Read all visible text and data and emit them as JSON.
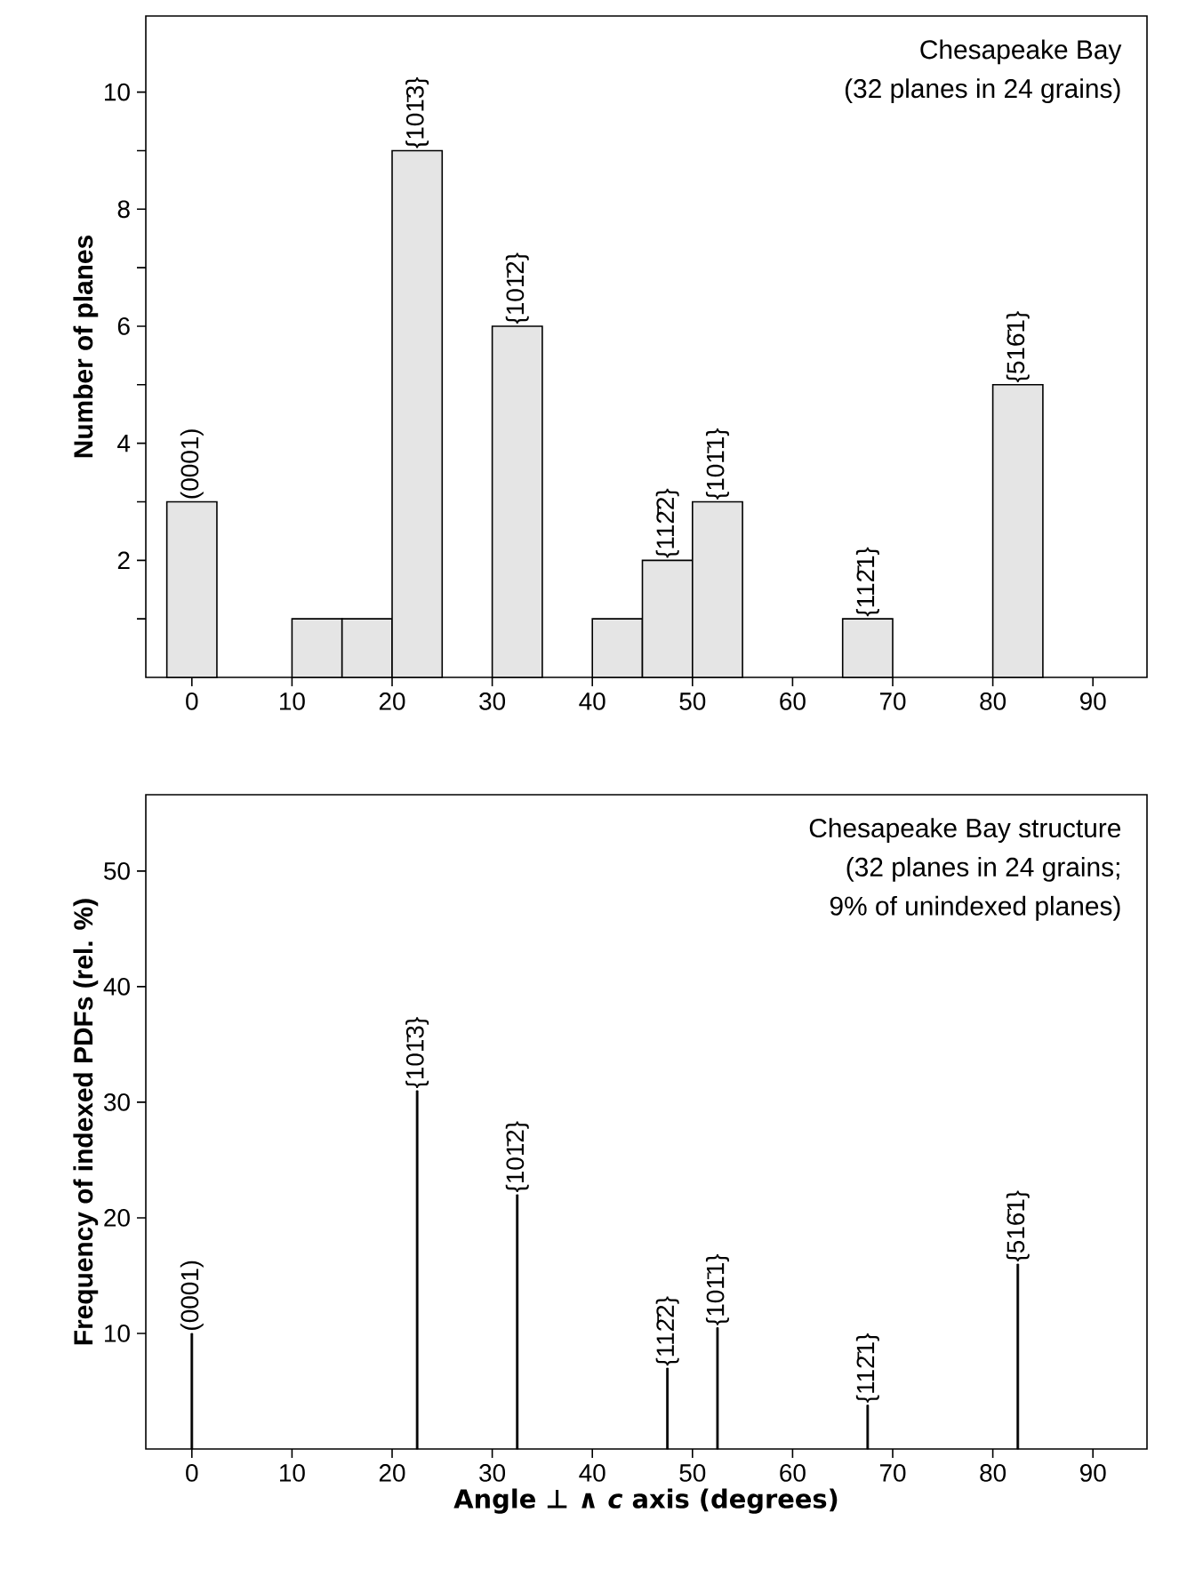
{
  "chart_data": [
    {
      "type": "histogram",
      "bins": [
        -2.5,
        2.5,
        10,
        15,
        20,
        25,
        30,
        35,
        40,
        45,
        50,
        55,
        65,
        70,
        80,
        85
      ],
      "values": [
        3,
        0,
        1,
        1,
        9,
        0,
        6,
        0,
        1,
        2,
        3,
        0,
        1,
        0,
        5
      ],
      "color": "#e5e5e5",
      "ylabel": "Number of planes",
      "xlim": [
        -4.6,
        95.4
      ],
      "xticks": [
        0,
        10,
        20,
        30,
        40,
        50,
        60,
        70,
        80,
        90
      ],
      "ylim": [
        0,
        11.3
      ],
      "yticks": [
        {
          "value": 1,
          "label": null
        },
        2,
        {
          "value": 3,
          "label": null
        },
        4,
        {
          "value": 5,
          "label": null
        },
        6,
        {
          "value": 7,
          "label": null
        },
        8,
        {
          "value": 9,
          "label": null
        },
        10
      ],
      "annotations": [
        "Chesapeake Bay",
        "(32 planes in 24 grains)",
        {
          "text": "(0001)",
          "x": 0,
          "y": 3
        },
        {
          "text": "{101̄3}",
          "x": 22.5,
          "y": 9
        },
        {
          "text": "{101̄2}",
          "x": 32.5,
          "y": 6
        },
        {
          "text": "{112̄2}",
          "x": 47.5,
          "y": 2
        },
        {
          "text": "{101̄1}",
          "x": 52.5,
          "y": 3
        },
        {
          "text": "{112̄1}",
          "x": 67.5,
          "y": 1
        },
        {
          "text": "{516̄1}",
          "x": 82.5,
          "y": 5
        }
      ]
    },
    {
      "type": "bar",
      "x": [
        0,
        22.5,
        32.5,
        47.5,
        52.5,
        67.5,
        82.5
      ],
      "values": [
        10,
        31,
        22,
        7,
        10.5,
        3.8,
        16
      ],
      "color": "#000000",
      "ylabel": "Frequency of indexed PDFs (rel. %)",
      "xlabel": "Angle ⊥ ∧ *c* axis (degrees)",
      "xlim": [
        -4.6,
        95.4
      ],
      "xticks": [
        0,
        10,
        20,
        30,
        40,
        50,
        60,
        70,
        80,
        90
      ],
      "ylim": [
        0,
        56.6
      ],
      "yticks": [
        10,
        20,
        30,
        40,
        50
      ],
      "annotations": [
        "Chesapeake Bay structure",
        "(32 planes in 24 grains;",
        "9% of unindexed planes)",
        {
          "text": "(0001)",
          "x": 0,
          "y": 10
        },
        {
          "text": "{101̄3}",
          "x": 22.5,
          "y": 31
        },
        {
          "text": "{101̄2}",
          "x": 32.5,
          "y": 22
        },
        {
          "text": "{112̄2}",
          "x": 47.5,
          "y": 7
        },
        {
          "text": "{101̄1}",
          "x": 52.5,
          "y": 10.5
        },
        {
          "text": "{112̄1}",
          "x": 67.5,
          "y": 3.8
        },
        {
          "text": "{516̄1}",
          "x": 82.5,
          "y": 16
        }
      ]
    }
  ]
}
